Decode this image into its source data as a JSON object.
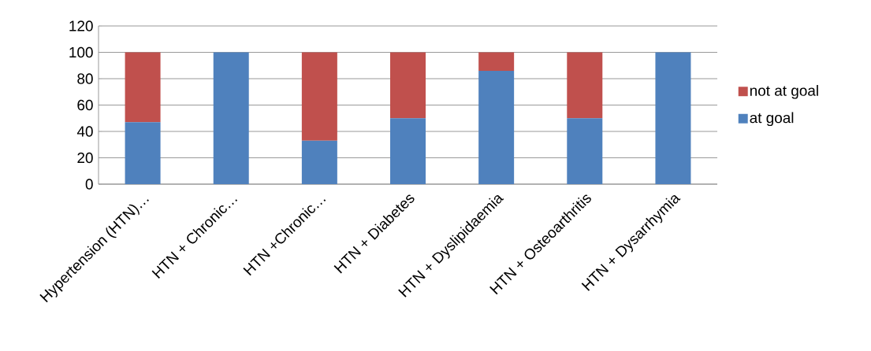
{
  "chart_data": {
    "type": "bar",
    "stacked": true,
    "categories": [
      "Hypertension (HTN)…",
      "HTN + Chronic…",
      "HTN +Chronic…",
      "HTN + Diabetes",
      "HTN + Dyslipidaemia",
      "HTN + Osteoarthritis",
      "HTN + Dysarrhymia"
    ],
    "series": [
      {
        "name": "at goal",
        "color": "#4f81bd",
        "values": [
          47,
          100,
          33,
          50,
          86,
          50,
          100
        ]
      },
      {
        "name": "not at goal",
        "color": "#c0504d",
        "values": [
          53,
          0,
          67,
          50,
          14,
          50,
          0
        ]
      }
    ],
    "ylim": [
      0,
      120
    ],
    "yticks": [
      0,
      20,
      40,
      60,
      80,
      100,
      120
    ],
    "grid": "y",
    "legend": "right"
  }
}
